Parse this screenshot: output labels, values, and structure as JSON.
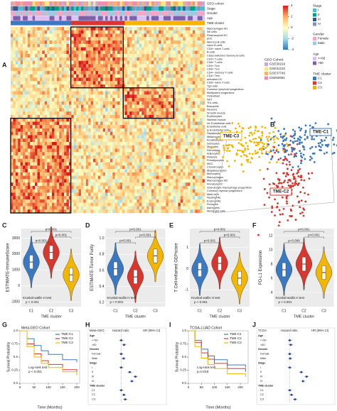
{
  "panel_labels": [
    "A",
    "B",
    "C",
    "D",
    "E",
    "F",
    "G",
    "H",
    "I",
    "J"
  ],
  "heatmap": {
    "annotations": [
      "GEO cohort",
      "Stage",
      "Gender",
      "Age",
      "TME-cluster"
    ],
    "cells": [
      "Macrophages M1",
      "NK cells",
      "Plasmacytoid DC",
      "pDC",
      "Memory B-cells",
      "naive B-cells",
      "CD4+ naive T-cells",
      "B-cells",
      "Class-switched memory B-cells",
      "CD4+ T-cells",
      "CD8+ T-cells",
      "CD4+ Tcm",
      "CD8+ Tcm",
      "CD4+ memory T-cells",
      "CD4+ Tem",
      "activated DC",
      "CD8+ naive T-cells",
      "Tgd cells",
      "Common lymphoid progenitors",
      "Multipotent progenitors",
      "Osteoblast",
      "NKT",
      "Th1 cells",
      "Basophils",
      "Neurons",
      "Smooth muscle",
      "Erythrocytes",
      "Skeletal muscle",
      "mv Endothelial cells",
      "Endothelial cells",
      "ly Endothelial cells",
      "Hepatocytes",
      "Melanocytes",
      "Keratinocytes",
      "Sebocytes",
      "Myocytes",
      "Fibroblasts",
      "Adipocytes",
      "Platelets",
      "Preadipocytes",
      "MSC",
      "Chondrocytes",
      "Megakaryocytes",
      "Monocytes",
      "Macrophages",
      "Macrophages M2",
      "Immature DC",
      "Granulocyte-macrophage progenitors",
      "Common myeloid progenitors",
      "Mast cells",
      "Neutrophils",
      "Eosinophils",
      "Pericytes",
      "Astrocytes",
      "Mesangial cells"
    ],
    "scale": [
      4,
      2,
      0,
      -2,
      -4
    ],
    "legends": [
      {
        "title": "Stage",
        "items": [
          "I",
          "II",
          "III",
          "IV"
        ],
        "colors": [
          "#4dbbd5",
          "#00a087",
          "#3c5488",
          "#8491b4"
        ]
      },
      {
        "title": "Gender",
        "items": [
          "Female",
          "Male"
        ],
        "colors": [
          "#f4a6c6",
          "#9ec9e2"
        ]
      },
      {
        "title": "Age",
        "items": [
          "<=60",
          ">60"
        ],
        "colors": [
          "#d9c2f0",
          "#7b61a8"
        ]
      },
      {
        "title": "GEO Cohort",
        "items": [
          "GSE30219",
          "GSE31210",
          "GSE37745",
          "GSE50081"
        ],
        "colors": [
          "#c9a7e2",
          "#f3e97f",
          "#f6b26b",
          "#ea8fb0"
        ]
      },
      {
        "title": "TME cluster",
        "items": [
          "C1",
          "C2",
          "C3"
        ],
        "colors": [
          "#3a78c2",
          "#d6372e",
          "#f2b500"
        ]
      }
    ]
  },
  "scatter3d": {
    "labels": [
      "TME-C3",
      "TME-C1",
      "TME-C2"
    ],
    "colors": [
      "#f2b500",
      "#3a78c2",
      "#d6372e"
    ]
  },
  "groups": [
    "C1",
    "C2",
    "C3"
  ],
  "group_axis": "TME cluster",
  "group_colors": [
    "#3a78c2",
    "#d6372e",
    "#f2b500"
  ],
  "violins": [
    {
      "ylabel": "ESTIMATE-ImmuneScore",
      "ylim": [
        -1300,
        3600
      ],
      "yticks": [
        -1000,
        0,
        1000,
        2000,
        3000
      ],
      "comparisons": [
        "p<0.001",
        "p<0.001",
        "p<0.001"
      ],
      "test": "Kruskal-wallis H test",
      "p": "p < 0.001",
      "medians": [
        1500,
        2100,
        700
      ]
    },
    {
      "ylabel": "ESTIMATE-Tumor Purity",
      "ylim": [
        0.15,
        1.12
      ],
      "yticks": [
        0.2,
        0.4,
        0.6,
        0.8,
        {
          "value": 1,
          "label": "1.0"
        }
      ],
      "comparisons": [
        "p<0.001",
        "p<0.001",
        "p<0.001"
      ],
      "test": "Kruskal-wallis H test",
      "p": "p < 0.001",
      "medians": [
        0.62,
        0.52,
        0.78
      ]
    },
    {
      "ylabel": "T Cell-inflamed GEPscore",
      "ylim": [
        -1.8,
        1.9
      ],
      "yticks": [
        -1,
        0,
        1
      ],
      "comparisons": [
        "p<0.001",
        "p<0.001",
        "p<0.001"
      ],
      "test": "Kruskal-wallis H test",
      "p": "p < 0.001",
      "medians": [
        -0.05,
        0.25,
        -0.45
      ]
    },
    {
      "ylabel": "PD-L1 Expression",
      "ylim": [
        2,
        13
      ],
      "yticks": [
        4,
        6,
        8,
        10,
        12
      ],
      "comparisons": [
        "p=0.008",
        "p<0.001",
        "p<0.001"
      ],
      "test": "Kruskal-wallis H test",
      "p": "p < 0.001",
      "medians": [
        7.2,
        8,
        6.8
      ]
    }
  ],
  "km_axis": {
    "xlabel": "Time (Months)",
    "ylabel": "Survival Probability",
    "ylim": [
      0,
      1
    ],
    "yticks": [
      {
        "value": 0,
        "label": "0.0"
      },
      0.25,
      0.5,
      0.75,
      {
        "value": 1,
        "label": "1.0"
      }
    ]
  },
  "km": [
    {
      "title": "Meta-GEO Cohort",
      "test": "Log-rank test",
      "p": "p < 0.001",
      "xlim": [
        0,
        210
      ],
      "xticks": [
        0,
        50,
        100,
        150,
        200
      ],
      "series": [
        {
          "name": "TME-C1",
          "color": "#3a78c2",
          "x": [
            0,
            25,
            50,
            75,
            100,
            150,
            200
          ],
          "y": [
            1,
            0.85,
            0.72,
            0.62,
            0.55,
            0.45,
            0.4
          ]
        },
        {
          "name": "TME-C2",
          "color": "#d6372e",
          "x": [
            0,
            25,
            50,
            75,
            100,
            150,
            200
          ],
          "y": [
            1,
            0.75,
            0.56,
            0.43,
            0.36,
            0.26,
            0.2
          ]
        },
        {
          "name": "TME-C3",
          "color": "#f2b500",
          "x": [
            0,
            25,
            50,
            75,
            100,
            150,
            200
          ],
          "y": [
            1,
            0.7,
            0.5,
            0.38,
            0.3,
            0.22,
            0.15
          ]
        }
      ]
    },
    {
      "title": "TCGA-LUAD Cohort",
      "test": "Log-rank test",
      "p": "p=0.018",
      "xlim": [
        0,
        230
      ],
      "xticks": [
        0,
        50,
        100,
        150,
        200
      ],
      "series": [
        {
          "name": "TME-C1",
          "color": "#3a78c2",
          "x": [
            0,
            25,
            50,
            75,
            100,
            150,
            220
          ],
          "y": [
            1,
            0.82,
            0.65,
            0.52,
            0.45,
            0.35,
            0.3
          ]
        },
        {
          "name": "TME-C2",
          "color": "#d6372e",
          "x": [
            0,
            25,
            50,
            75,
            100,
            150,
            220
          ],
          "y": [
            1,
            0.78,
            0.58,
            0.46,
            0.38,
            0.28,
            0.22
          ]
        },
        {
          "name": "TME-C3",
          "color": "#f2b500",
          "x": [
            0,
            25,
            50,
            75,
            100,
            150,
            220
          ],
          "y": [
            1,
            0.7,
            0.48,
            0.36,
            0.28,
            0.18,
            0.12
          ]
        }
      ]
    }
  ],
  "forest": [
    {
      "columns": [
        "Meta-GEO",
        "Hazard ratio",
        "HR (95% CI)"
      ],
      "rows": [
        {
          "label": "Age",
          "hr": null
        },
        {
          "label": "<=60",
          "hr": 1
        },
        {
          "label": ">60",
          "hr": 1.32
        },
        {
          "label": "Gender",
          "hr": null
        },
        {
          "label": "Female",
          "hr": 1
        },
        {
          "label": "Male",
          "hr": 1.27
        },
        {
          "label": "Stage",
          "hr": null
        },
        {
          "label": "I",
          "hr": 1
        },
        {
          "label": "II",
          "hr": 1.96
        },
        {
          "label": "III",
          "hr": 2.6
        },
        {
          "label": "IV",
          "hr": 2.2
        },
        {
          "label": "TME cluster",
          "hr": null
        },
        {
          "label": "C1",
          "hr": 1
        },
        {
          "label": "C2",
          "hr": 1.3
        },
        {
          "label": "C3",
          "hr": 1.45
        }
      ]
    },
    {
      "columns": [
        "TCGA",
        "Hazard ratio",
        "HR (95% CI)"
      ],
      "rows": [
        {
          "label": "Age",
          "hr": null
        },
        {
          "label": "<=60",
          "hr": 1
        },
        {
          "label": ">60",
          "hr": 1.12
        },
        {
          "label": "Gender",
          "hr": null
        },
        {
          "label": "Female",
          "hr": 1
        },
        {
          "label": "Male",
          "hr": 1.05
        },
        {
          "label": "Stage",
          "hr": null
        },
        {
          "label": "I",
          "hr": 1
        },
        {
          "label": "II",
          "hr": 2.3
        },
        {
          "label": "III",
          "hr": 2.9
        },
        {
          "label": "IV",
          "hr": 2.5
        },
        {
          "label": "TME cluster",
          "hr": null
        },
        {
          "label": "C1",
          "hr": 1
        },
        {
          "label": "C2",
          "hr": 1.2
        },
        {
          "label": "C3",
          "hr": 1.6
        }
      ]
    }
  ],
  "forest_xlim": [
    0,
    3.2
  ]
}
